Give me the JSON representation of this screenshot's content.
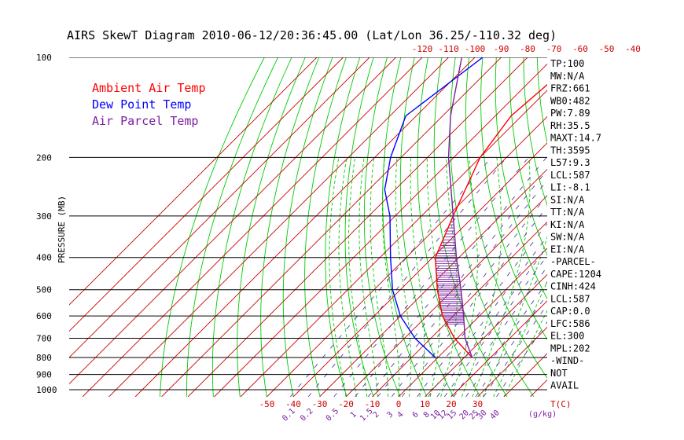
{
  "title": "AIRS SkewT Diagram 2010-06-12/20:36:45.00 (Lat/Lon 36.25/-110.32 deg)",
  "y_axis_label": "PRESSURE (MB)",
  "legend": [
    {
      "label": "Ambient Air Temp",
      "color": "#ff0000"
    },
    {
      "label": "Dew Point Temp",
      "color": "#0000ff"
    },
    {
      "label": "Air Parcel Temp",
      "color": "#7a1fa2"
    }
  ],
  "top_temp_ticks": [
    "-120",
    "-110",
    "-100",
    "-90",
    "-80",
    "-70",
    "-60",
    "-50",
    "-40"
  ],
  "bottom_temp_ticks": [
    "-50",
    "-40",
    "-30",
    "-20",
    "-10",
    "0",
    "10",
    "20",
    "30"
  ],
  "bottom_temp_unit": "T(C)",
  "mixing_ratio_ticks": [
    "0.1",
    "0.2",
    "0.5",
    "1",
    "1.5",
    "2",
    "3",
    "4",
    "6",
    "8",
    "10",
    "12",
    "15",
    "20",
    "25",
    "30",
    "40"
  ],
  "mixing_ratio_unit": "(g/kg)",
  "pressure_ticks": [
    "100",
    "200",
    "300",
    "400",
    "500",
    "600",
    "700",
    "800",
    "900",
    "1000"
  ],
  "indices": [
    "TP:100",
    "MW:N/A",
    "FRZ:661",
    "WB0:482",
    "PW:7.89",
    "RH:35.5",
    "MAXT:14.7",
    "TH:3595",
    "L57:9.3",
    "LCL:587",
    "LI:-8.1",
    "SI:N/A",
    "TT:N/A",
    "KI:N/A",
    "SW:N/A",
    "EI:N/A"
  ],
  "parcel_header": "-PARCEL-",
  "parcel_values": [
    "CAPE:1204",
    "CINH:424",
    "LCL:587",
    "CAP:0.0",
    "LFC:586",
    "EL:300",
    "MPL:202"
  ],
  "wind_header": "-WIND-",
  "wind_values": [
    "NOT",
    "AVAIL"
  ],
  "colors": {
    "temperature": "#ff0000",
    "dewpoint": "#0000ff",
    "parcel": "#7a1fa2",
    "dry_adiabat": "#00cc00",
    "moist_adiabat": "#00cc00",
    "isotherm": "#cc0000",
    "mixing_ratio": "#5a3fa8",
    "isobar": "#000000"
  },
  "chart_data": {
    "type": "line",
    "title": "AIRS SkewT Diagram 2010-06-12/20:36:45.00 (Lat/Lon 36.25/-110.32 deg)",
    "ylabel": "PRESSURE (MB)",
    "xlabel": "T(C)",
    "y_scale": "log (inverted)",
    "ylim": [
      1050,
      100
    ],
    "series": [
      {
        "name": "Ambient Air Temp",
        "points": [
          [
            100,
            -60.5
          ],
          [
            150,
            -64
          ],
          [
            200,
            -60
          ],
          [
            300,
            -48
          ],
          [
            400,
            -39
          ],
          [
            500,
            -26
          ],
          [
            600,
            -14
          ],
          [
            700,
            -1
          ],
          [
            800,
            13
          ]
        ]
      },
      {
        "name": "Dew Point Temp",
        "points": [
          [
            100,
            -97
          ],
          [
            150,
            -104
          ],
          [
            200,
            -94
          ],
          [
            250,
            -84
          ],
          [
            300,
            -72
          ],
          [
            400,
            -56
          ],
          [
            500,
            -43
          ],
          [
            600,
            -30
          ],
          [
            700,
            -16
          ],
          [
            800,
            -1
          ]
        ]
      },
      {
        "name": "Air Parcel Temp",
        "points": [
          [
            100,
            -105
          ],
          [
            150,
            -87
          ],
          [
            200,
            -72
          ],
          [
            300,
            -48
          ],
          [
            400,
            -31
          ],
          [
            500,
            -17
          ],
          [
            600,
            -6
          ],
          [
            700,
            3
          ],
          [
            800,
            13
          ]
        ]
      }
    ]
  }
}
